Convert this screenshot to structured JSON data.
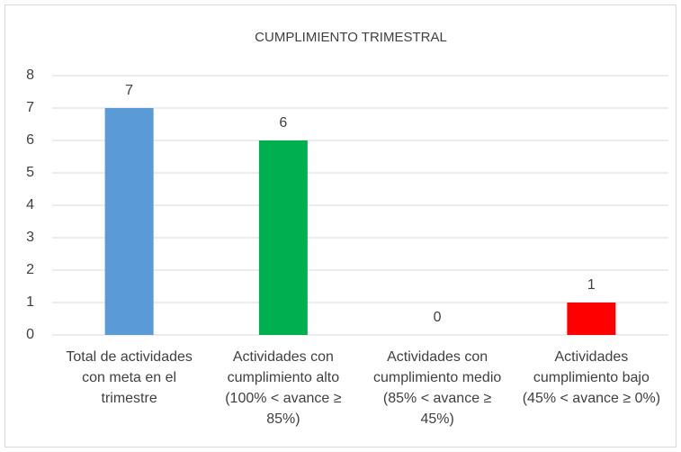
{
  "chart_data": {
    "type": "bar",
    "title": "CUMPLIMIENTO TRIMESTRAL",
    "categories": [
      "Total de actividades con meta en el trimestre",
      "Actividades con cumplimiento alto (100% < avance ≥ 85%)",
      "Actividades con cumplimiento medio (85% < avance ≥ 45%)",
      "Actividades cumplimiento bajo (45% < avance ≥ 0%)"
    ],
    "values": [
      7,
      6,
      0,
      1
    ],
    "colors": [
      "#5b9bd5",
      "#00b050",
      "#ffc000",
      "#ff0000"
    ],
    "ylim": [
      0,
      8
    ],
    "yticks": [
      0,
      1,
      2,
      3,
      4,
      5,
      6,
      7,
      8
    ],
    "grid": true
  }
}
